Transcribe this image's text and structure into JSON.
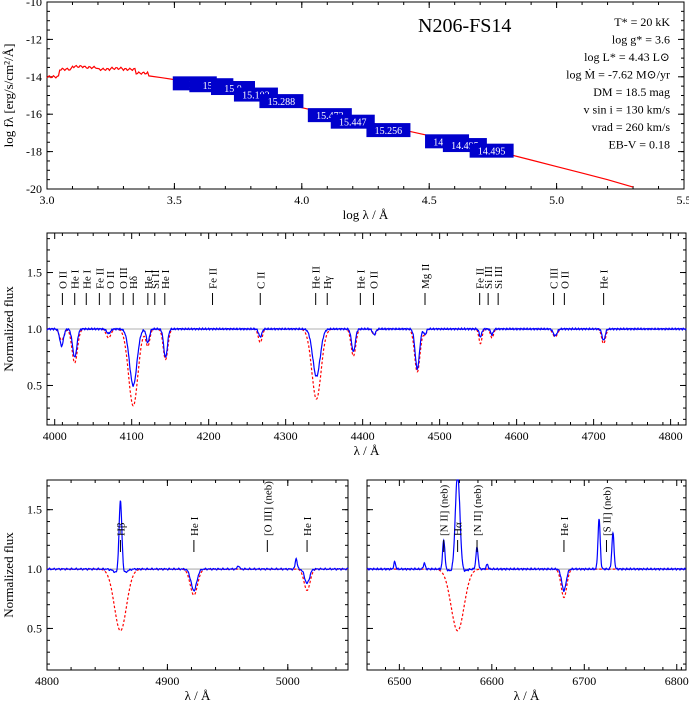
{
  "colors": {
    "model": "#ff0000",
    "observed": "#0000ff",
    "photometry": "#0000cc",
    "continuum": "#999999",
    "axis": "#000000"
  },
  "chart_data": [
    {
      "id": "sed",
      "type": "line",
      "title": "N206-FS14",
      "xlabel": "log λ / Å",
      "ylabel": "log fλ [erg/s/cm²/Å]",
      "xlim": [
        3.0,
        5.5
      ],
      "ylim": [
        -20,
        -10
      ],
      "xticks": [
        3.0,
        3.5,
        4.0,
        4.5,
        5.0,
        5.5
      ],
      "xtick_labels": [
        "3.0",
        "3.5",
        "4.0",
        "4.5",
        "5.0",
        "5.5"
      ],
      "yticks": [
        -20,
        -18,
        -16,
        -14,
        -12,
        -10
      ],
      "ytick_labels": [
        "-20",
        "-18",
        "-16",
        "-14",
        "-12",
        "-10"
      ],
      "parameters": [
        "T* = 20 kK",
        "log g* = 3.6",
        "log L* = 4.43 L⊙",
        "log Ṁ = -7.62 M⊙/yr",
        "DM = 18.5 mag",
        "v sin i = 130 km/s",
        "vrad = 260 km/s",
        "EB-V = 0.18"
      ],
      "series": [
        {
          "kind": "model",
          "x": [
            3.0,
            3.05,
            3.1,
            3.15,
            3.2,
            3.25,
            3.3,
            3.35,
            3.4,
            3.45,
            3.5,
            3.6,
            3.7,
            3.8,
            3.9,
            4.0,
            4.1,
            4.2,
            4.3,
            4.4,
            4.5,
            4.6,
            4.7,
            4.8,
            4.9,
            5.0,
            5.1,
            5.2,
            5.3
          ],
          "y": [
            -14.0,
            -13.6,
            -13.45,
            -13.5,
            -13.6,
            -13.55,
            -13.6,
            -13.8,
            -13.95,
            -14.05,
            -14.15,
            -14.45,
            -14.75,
            -15.05,
            -15.35,
            -15.65,
            -15.95,
            -16.25,
            -16.55,
            -16.85,
            -17.15,
            -17.45,
            -17.75,
            -18.1,
            -18.45,
            -18.8,
            -19.15,
            -19.5,
            -19.9
          ]
        }
      ],
      "photometry": [
        {
          "label": "14.",
          "x": 3.58,
          "y": -14.35
        },
        {
          "label": "15.2",
          "x": 3.645,
          "y": -14.45
        },
        {
          "label": "15.0",
          "x": 3.73,
          "y": -14.6
        },
        {
          "label": "15.102",
          "x": 3.82,
          "y": -14.95
        },
        {
          "label": "15.288",
          "x": 3.92,
          "y": -15.3
        },
        {
          "label": "15.473",
          "x": 4.11,
          "y": -16.05
        },
        {
          "label": "15.447",
          "x": 4.2,
          "y": -16.4
        },
        {
          "label": "15.256",
          "x": 4.34,
          "y": -16.85
        },
        {
          "label": "14.622",
          "x": 4.57,
          "y": -17.45
        },
        {
          "label": "14.495",
          "x": 4.64,
          "y": -17.65
        },
        {
          "label": "14.495",
          "x": 4.745,
          "y": -17.95
        }
      ]
    },
    {
      "id": "blue",
      "type": "line",
      "ylabel": "Normalized flux",
      "xlabel": "λ / Å",
      "xlim": [
        3990,
        4820
      ],
      "ylim": [
        0.15,
        1.85
      ],
      "xticks": [
        4000,
        4100,
        4200,
        4300,
        4400,
        4500,
        4600,
        4700,
        4800
      ],
      "xtick_labels": [
        "4000",
        "4100",
        "4200",
        "4300",
        "4400",
        "4500",
        "4600",
        "4700",
        "4800"
      ],
      "yticks": [
        0.5,
        1.0,
        1.5
      ],
      "ytick_labels": [
        "0.5",
        "1.0",
        "1.5"
      ],
      "continuum": 1.0,
      "lines": [
        {
          "label": "O II",
          "x": 4010
        },
        {
          "label": "He I",
          "x": 4026
        },
        {
          "label": "He I",
          "x": 4041
        },
        {
          "label": "Fe II",
          "x": 4058
        },
        {
          "label": "O II",
          "x": 4072
        },
        {
          "label": "O III",
          "x": 4089
        },
        {
          "label": "Hδ",
          "x": 4102
        },
        {
          "label": "He I",
          "x": 4121
        },
        {
          "label": "Si II",
          "x": 4130
        },
        {
          "label": "He I",
          "x": 4143
        },
        {
          "label": "Fe II",
          "x": 4205
        },
        {
          "label": "C II",
          "x": 4267
        },
        {
          "label": "He II",
          "x": 4339
        },
        {
          "label": "Hγ",
          "x": 4354
        },
        {
          "label": "He I",
          "x": 4397
        },
        {
          "label": "O II",
          "x": 4414
        },
        {
          "label": "Mg II",
          "x": 4481
        },
        {
          "label": "Fe II",
          "x": 4552
        },
        {
          "label": "Si III",
          "x": 4563
        },
        {
          "label": "Si III",
          "x": 4576
        },
        {
          "label": "C III",
          "x": 4648
        },
        {
          "label": "O II",
          "x": 4662
        },
        {
          "label": "He I",
          "x": 4713
        }
      ],
      "absorption_features": [
        {
          "x": 4009,
          "w": 3,
          "obs": 0.15,
          "mod": 0.1
        },
        {
          "x": 4026,
          "w": 3.5,
          "obs": 0.25,
          "mod": 0.3
        },
        {
          "x": 4070,
          "w": 3,
          "obs": 0.04,
          "mod": 0.08
        },
        {
          "x": 4102,
          "w": 6,
          "obs": 0.5,
          "mod": 0.68
        },
        {
          "x": 4121,
          "w": 2.5,
          "obs": 0.12,
          "mod": 0.15
        },
        {
          "x": 4144,
          "w": 3,
          "obs": 0.25,
          "mod": 0.27
        },
        {
          "x": 4267,
          "w": 2.5,
          "obs": 0.07,
          "mod": 0.12
        },
        {
          "x": 4340,
          "w": 6,
          "obs": 0.42,
          "mod": 0.62
        },
        {
          "x": 4388,
          "w": 3,
          "obs": 0.2,
          "mod": 0.24
        },
        {
          "x": 4415,
          "w": 2.5,
          "obs": 0.05,
          "mod": 0.05
        },
        {
          "x": 4471,
          "w": 3.5,
          "obs": 0.35,
          "mod": 0.38
        },
        {
          "x": 4481,
          "w": 2,
          "obs": 0.05,
          "mod": 0.05
        },
        {
          "x": 4553,
          "w": 2,
          "obs": 0.07,
          "mod": 0.13
        },
        {
          "x": 4568,
          "w": 2,
          "obs": 0.05,
          "mod": 0.08
        },
        {
          "x": 4650,
          "w": 3,
          "obs": 0.06,
          "mod": 0.07
        },
        {
          "x": 4713,
          "w": 2.5,
          "obs": 0.1,
          "mod": 0.13
        }
      ]
    },
    {
      "id": "hbeta",
      "type": "line",
      "ylabel": "Normalized flux",
      "xlabel": "λ / Å",
      "xlim": [
        4800,
        5050
      ],
      "ylim": [
        0.15,
        1.75
      ],
      "xticks": [
        4800,
        4900,
        5000
      ],
      "xtick_labels": [
        "4800",
        "4900",
        "5000"
      ],
      "yticks": [
        0.5,
        1.0,
        1.5
      ],
      "ytick_labels": [
        "0.5",
        "1.0",
        "1.5"
      ],
      "continuum": 1.0,
      "lines": [
        {
          "label": "Hβ",
          "x": 4861
        },
        {
          "label": "He I",
          "x": 4922
        },
        {
          "label": "[O III] (neb)",
          "x": 4983
        },
        {
          "label": "He I",
          "x": 5016
        }
      ],
      "absorption_features": [
        {
          "x": 4861,
          "w": 5,
          "obs": 0.05,
          "mod": 0.52
        },
        {
          "x": 4922,
          "w": 3,
          "obs": 0.18,
          "mod": 0.22
        },
        {
          "x": 5016,
          "w": 2.5,
          "obs": 0.12,
          "mod": 0.18
        }
      ],
      "emission_features": [
        {
          "x": 4861,
          "w": 1.2,
          "h": 0.62
        },
        {
          "x": 4959,
          "w": 0.8,
          "h": 0.03
        },
        {
          "x": 5007,
          "w": 0.8,
          "h": 0.09
        }
      ]
    },
    {
      "id": "halpha",
      "type": "line",
      "xlabel": "λ / Å",
      "xlim": [
        6465,
        6810
      ],
      "ylim": [
        0.15,
        1.75
      ],
      "xticks": [
        6500,
        6600,
        6700,
        6800
      ],
      "xtick_labels": [
        "6500",
        "6600",
        "6700",
        "6800"
      ],
      "yticks": [
        0.5,
        1.0,
        1.5
      ],
      "ytick_labels": [
        "",
        "",
        ""
      ],
      "continuum": 1.0,
      "lines": [
        {
          "label": "[N II] (neb)",
          "x": 6548
        },
        {
          "label": "Hα",
          "x": 6563
        },
        {
          "label": "He I",
          "x": 6678
        },
        {
          "label": "[N II] (neb)",
          "x": 6584
        },
        {
          "label": "[S II] (neb)",
          "x": 6724
        }
      ],
      "absorption_features": [
        {
          "x": 6563,
          "w": 7,
          "obs": 0.05,
          "mod": 0.52
        },
        {
          "x": 6678,
          "w": 3,
          "obs": 0.18,
          "mod": 0.24
        }
      ],
      "emission_features": [
        {
          "x": 6548,
          "w": 1.2,
          "h": 0.25
        },
        {
          "x": 6563,
          "w": 2.5,
          "h": 0.85
        },
        {
          "x": 6584,
          "w": 1.2,
          "h": 0.18
        },
        {
          "x": 6716,
          "w": 1.2,
          "h": 0.42
        },
        {
          "x": 6731,
          "w": 1.2,
          "h": 0.3
        },
        {
          "x": 6495,
          "w": 1,
          "h": 0.06
        },
        {
          "x": 6527,
          "w": 1,
          "h": 0.05
        },
        {
          "x": 6595,
          "w": 1,
          "h": 0.04
        }
      ]
    }
  ]
}
